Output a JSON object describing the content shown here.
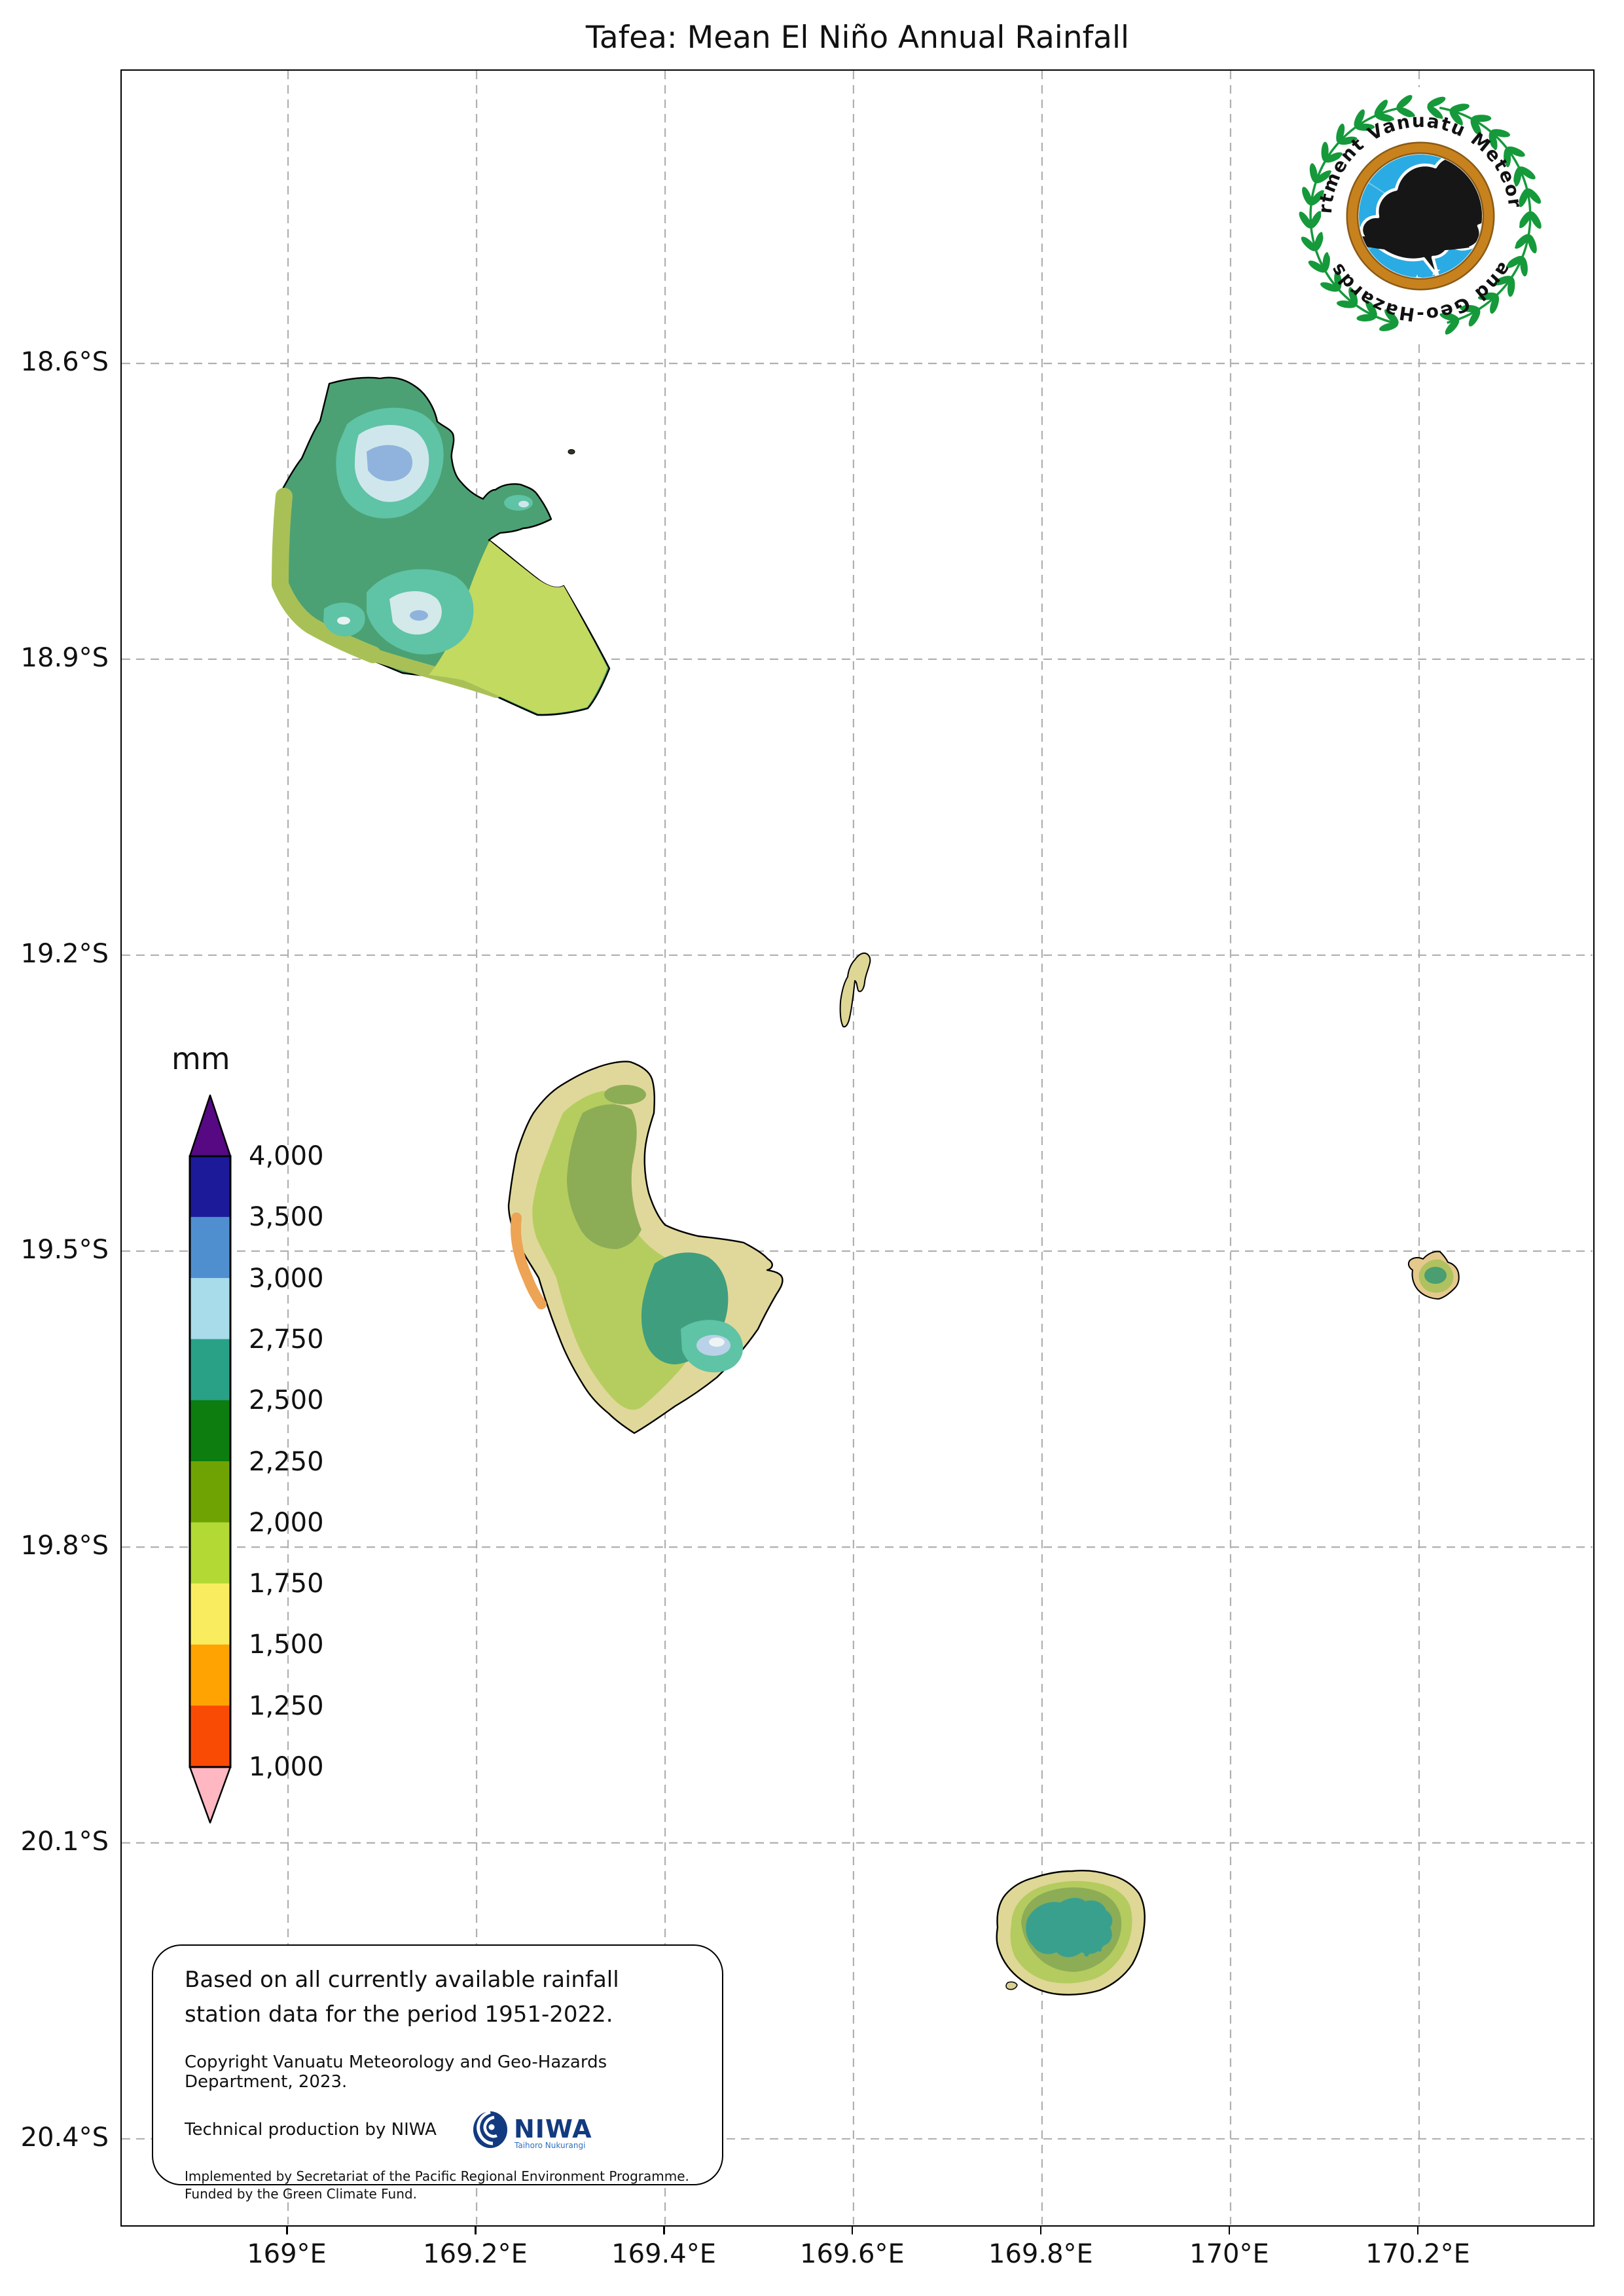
{
  "title": "Tafea: Mean El Niño Annual Rainfall",
  "emblem": {
    "arc_top": "Department Vanuatu Meteorology",
    "arc_bottom": "and Geo-Hazards"
  },
  "axes": {
    "x_ticks": [
      {
        "label": "169°E",
        "pos": 11.28
      },
      {
        "label": "169.2°E",
        "pos": 24.07
      },
      {
        "label": "169.4°E",
        "pos": 36.86
      },
      {
        "label": "169.6°E",
        "pos": 49.64
      },
      {
        "label": "169.8°E",
        "pos": 62.43
      },
      {
        "label": "170°E",
        "pos": 75.22
      },
      {
        "label": "170.2°E",
        "pos": 88.01
      }
    ],
    "y_ticks": [
      {
        "label": "18.6°S",
        "pos": 13.57
      },
      {
        "label": "18.9°S",
        "pos": 27.28
      },
      {
        "label": "19.2°S",
        "pos": 41.0
      },
      {
        "label": "19.5°S",
        "pos": 54.72
      },
      {
        "label": "19.8°S",
        "pos": 68.44
      },
      {
        "label": "20.1°S",
        "pos": 82.15
      },
      {
        "label": "20.4°S",
        "pos": 95.87
      }
    ]
  },
  "legend": {
    "title": "mm",
    "above_color": "#560983",
    "below_color": "#ffb7c2",
    "outline_color": "#000000",
    "segments": [
      {
        "from": "3,500",
        "to": "4,000",
        "color": "#1c1a99"
      },
      {
        "from": "3,000",
        "to": "3,500",
        "color": "#4f8fd0"
      },
      {
        "from": "2,750",
        "to": "3,000",
        "color": "#a8dcea"
      },
      {
        "from": "2,500",
        "to": "2,750",
        "color": "#28a187"
      },
      {
        "from": "2,250",
        "to": "2,500",
        "color": "#0c7d0e"
      },
      {
        "from": "2,000",
        "to": "2,250",
        "color": "#6fa304"
      },
      {
        "from": "1,750",
        "to": "2,000",
        "color": "#b2d934"
      },
      {
        "from": "1,500",
        "to": "1,750",
        "color": "#f9ed5f"
      },
      {
        "from": "1,250",
        "to": "1,500",
        "color": "#ffa302"
      },
      {
        "from": "1,000",
        "to": "1,250",
        "color": "#fa4b04"
      }
    ],
    "tick_labels": [
      "4,000",
      "3,500",
      "3,000",
      "2,750",
      "2,500",
      "2,250",
      "2,000",
      "1,750",
      "1,500",
      "1,250",
      "1,000"
    ]
  },
  "infobox": {
    "main_line1": "Based on all currently available rainfall",
    "main_line2": "station data for the period 1951-2022.",
    "copyright": "Copyright Vanuatu Meteorology and Geo-Hazards Department, 2023.",
    "production": "Technical production by NIWA",
    "niwa_name": "NIWA",
    "niwa_subtitle": "Taihoro Nukurangi",
    "implemented_line1": "Implemented by Secretariat of the Pacific Regional Environment Programme.",
    "implemented_line2": "Funded by the Green Climate Fund."
  }
}
